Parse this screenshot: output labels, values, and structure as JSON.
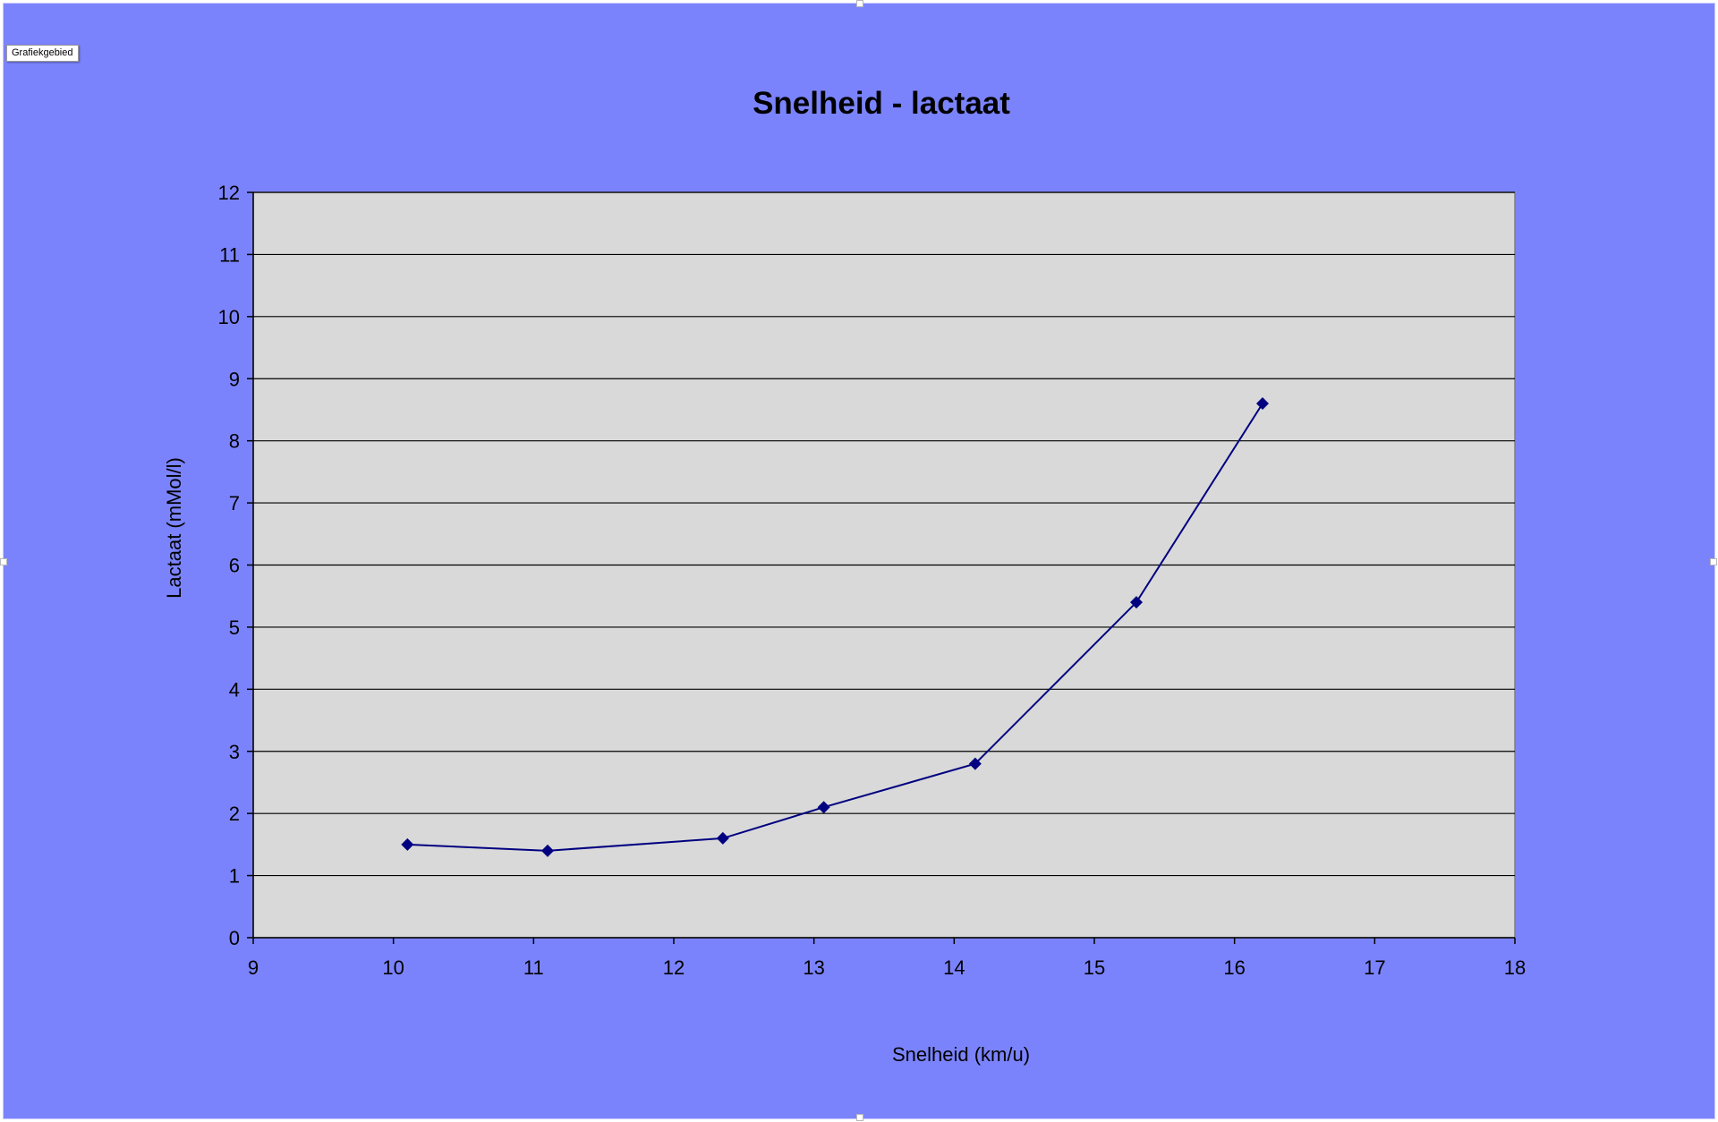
{
  "tooltip": "Grafiekgebied",
  "colors": {
    "background": "#7b83fc",
    "plot_area": "#d9d9d9",
    "series": "#000080",
    "gridline": "#000000"
  },
  "chart_data": {
    "type": "line",
    "title": "Snelheid - lactaat",
    "xlabel": "Snelheid (km/u)",
    "ylabel": "Lactaat (mMol/l)",
    "xlim": [
      9,
      18
    ],
    "ylim": [
      0,
      12
    ],
    "xticks": [
      "9",
      "10",
      "11",
      "12",
      "13",
      "14",
      "15",
      "16",
      "17",
      "18"
    ],
    "yticks": [
      "0",
      "1",
      "2",
      "3",
      "4",
      "5",
      "6",
      "7",
      "8",
      "9",
      "10",
      "11",
      "12"
    ],
    "grid": "horizontal",
    "legend": "none",
    "marker": "diamond",
    "series": [
      {
        "x": [
          10.1,
          11.1,
          12.35,
          13.07,
          14.15,
          15.3,
          16.2
        ],
        "y": [
          1.5,
          1.4,
          1.6,
          2.1,
          2.8,
          5.4,
          8.6
        ]
      }
    ]
  }
}
